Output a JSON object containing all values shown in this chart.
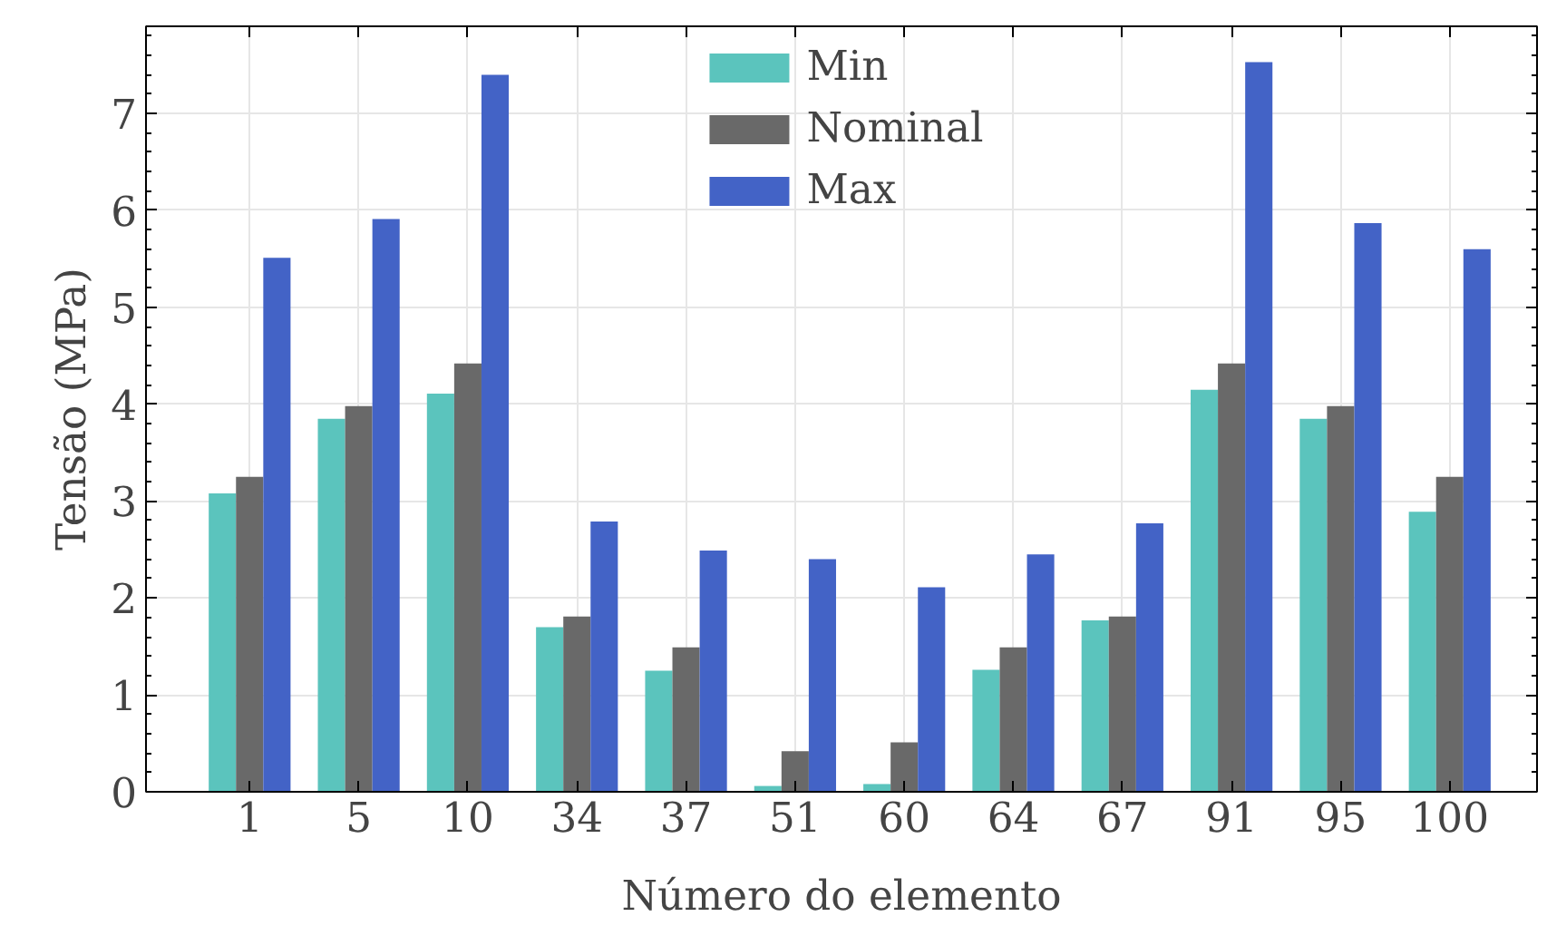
{
  "chart_data": {
    "type": "bar",
    "xlabel": "Número do elemento",
    "ylabel": "Tensão (MPa)",
    "categories": [
      "1",
      "5",
      "10",
      "34",
      "37",
      "51",
      "60",
      "64",
      "67",
      "91",
      "95",
      "100"
    ],
    "series": [
      {
        "name": "Min",
        "color": "#5bc4bd",
        "values": [
          3.08,
          3.85,
          4.11,
          1.7,
          1.25,
          0.06,
          0.08,
          1.26,
          1.77,
          4.15,
          3.85,
          2.89
        ]
      },
      {
        "name": "Nominal",
        "color": "#696969",
        "values": [
          3.25,
          3.98,
          4.42,
          1.81,
          1.49,
          0.42,
          0.51,
          1.49,
          1.81,
          4.42,
          3.98,
          3.25
        ]
      },
      {
        "name": "Max",
        "color": "#4363c6",
        "values": [
          5.51,
          5.91,
          7.4,
          2.79,
          2.49,
          2.4,
          2.11,
          2.45,
          2.77,
          7.53,
          5.87,
          5.6
        ]
      }
    ],
    "ylim": [
      0,
      7.9
    ],
    "yticks": [
      0,
      1,
      2,
      3,
      4,
      5,
      6,
      7
    ],
    "grid": true,
    "legend": "top"
  }
}
